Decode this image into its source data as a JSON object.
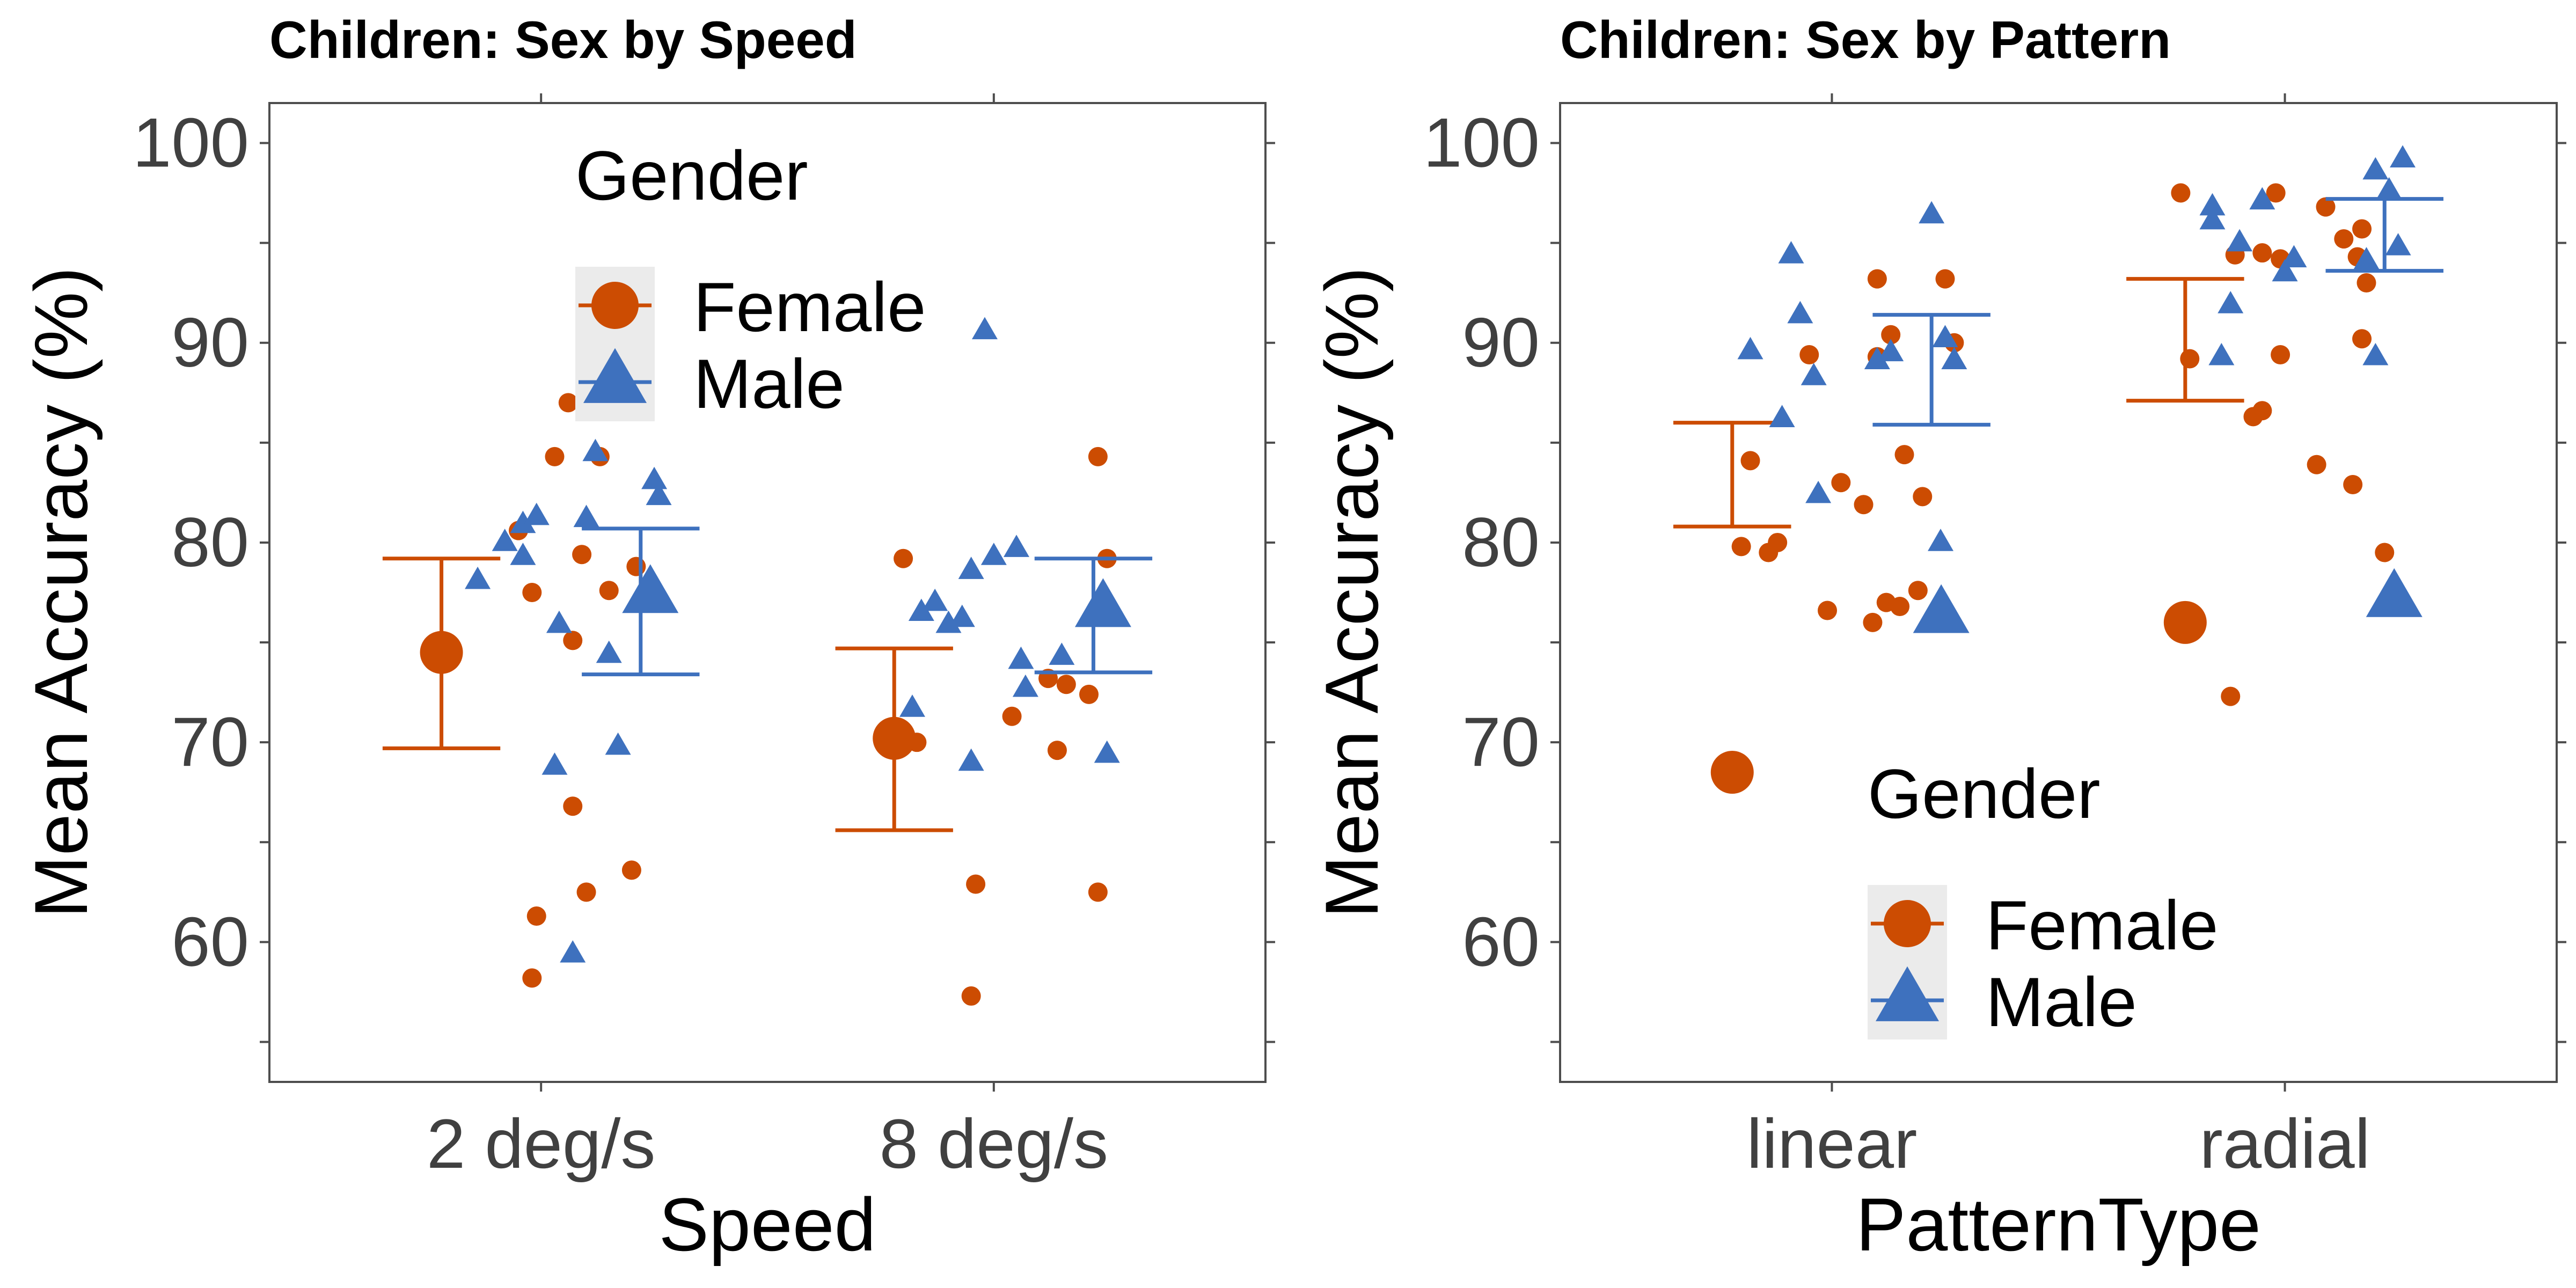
{
  "colors": {
    "female": "#CC4C02",
    "male": "#3E71BE",
    "axis": "#4D4D4D",
    "text": "#000000",
    "tick_text": "#404040",
    "legend_key_bg": "#EBEBEB"
  },
  "legend": {
    "title": "Gender",
    "female_label": "Female",
    "male_label": "Male"
  },
  "chart_data": [
    {
      "type": "scatter",
      "title": "Children: Sex by Speed",
      "xlabel": "Speed",
      "ylabel": "Mean Accuracy (%)",
      "categories": [
        "2 deg/s",
        "8 deg/s"
      ],
      "ylim": [
        53,
        102
      ],
      "yticks": [
        60,
        70,
        80,
        90,
        100
      ],
      "grid": false,
      "legend_position": "top-center",
      "series": [
        {
          "name": "Female",
          "marker": "circle",
          "means": [
            74.5,
            70.2
          ],
          "error_low": [
            69.7,
            65.6
          ],
          "error_high": [
            79.2,
            74.7
          ],
          "points": [
            {
              "x": 0.95,
              "y": 80.6
            },
            {
              "x": 1.06,
              "y": 87.0
            },
            {
              "x": 1.03,
              "y": 84.3
            },
            {
              "x": 1.13,
              "y": 84.3
            },
            {
              "x": 1.09,
              "y": 79.4
            },
            {
              "x": 1.21,
              "y": 78.8
            },
            {
              "x": 1.15,
              "y": 77.6
            },
            {
              "x": 0.98,
              "y": 77.5
            },
            {
              "x": 1.07,
              "y": 75.1
            },
            {
              "x": 1.07,
              "y": 66.8
            },
            {
              "x": 1.2,
              "y": 63.6
            },
            {
              "x": 1.1,
              "y": 62.5
            },
            {
              "x": 0.99,
              "y": 61.3
            },
            {
              "x": 0.98,
              "y": 58.2
            },
            {
              "x": 1.8,
              "y": 79.2
            },
            {
              "x": 1.83,
              "y": 70.0
            },
            {
              "x": 2.04,
              "y": 71.3
            },
            {
              "x": 2.12,
              "y": 73.2
            },
            {
              "x": 2.16,
              "y": 72.9
            },
            {
              "x": 2.21,
              "y": 72.4
            },
            {
              "x": 2.14,
              "y": 69.6
            },
            {
              "x": 2.23,
              "y": 62.5
            },
            {
              "x": 1.96,
              "y": 62.9
            },
            {
              "x": 1.95,
              "y": 57.3
            },
            {
              "x": 2.25,
              "y": 79.2
            },
            {
              "x": 2.23,
              "y": 84.3
            }
          ]
        },
        {
          "name": "Male",
          "marker": "triangle",
          "means": [
            77.4,
            76.7
          ],
          "error_low": [
            73.4,
            73.5
          ],
          "error_high": [
            80.7,
            79.2
          ],
          "points": [
            {
              "x": 0.86,
              "y": 78.1
            },
            {
              "x": 0.92,
              "y": 80.0
            },
            {
              "x": 0.96,
              "y": 79.3
            },
            {
              "x": 0.96,
              "y": 80.9
            },
            {
              "x": 0.99,
              "y": 81.3
            },
            {
              "x": 1.04,
              "y": 75.9
            },
            {
              "x": 1.1,
              "y": 81.2
            },
            {
              "x": 1.12,
              "y": 84.5
            },
            {
              "x": 1.15,
              "y": 74.4
            },
            {
              "x": 1.25,
              "y": 83.1
            },
            {
              "x": 1.26,
              "y": 82.3
            },
            {
              "x": 1.03,
              "y": 68.8
            },
            {
              "x": 1.17,
              "y": 69.8
            },
            {
              "x": 1.07,
              "y": 59.4
            },
            {
              "x": 1.98,
              "y": 90.6
            },
            {
              "x": 1.84,
              "y": 76.5
            },
            {
              "x": 1.87,
              "y": 77.0
            },
            {
              "x": 1.9,
              "y": 75.9
            },
            {
              "x": 1.93,
              "y": 76.2
            },
            {
              "x": 1.95,
              "y": 78.6
            },
            {
              "x": 2.0,
              "y": 79.3
            },
            {
              "x": 2.05,
              "y": 79.7
            },
            {
              "x": 1.82,
              "y": 71.7
            },
            {
              "x": 1.95,
              "y": 69.0
            },
            {
              "x": 2.06,
              "y": 74.1
            },
            {
              "x": 2.07,
              "y": 72.7
            },
            {
              "x": 2.15,
              "y": 74.3
            },
            {
              "x": 2.25,
              "y": 69.4
            }
          ]
        }
      ]
    },
    {
      "type": "scatter",
      "title": "Children: Sex by Pattern",
      "xlabel": "PatternType",
      "ylabel": "Mean Accuracy (%)",
      "categories": [
        "linear",
        "radial"
      ],
      "ylim": [
        53,
        102
      ],
      "yticks": [
        60,
        70,
        80,
        90,
        100
      ],
      "grid": false,
      "legend_position": "bottom-center",
      "series": [
        {
          "name": "Female",
          "marker": "circle",
          "means": [
            68.5,
            76.0
          ],
          "error_low": [
            80.8,
            87.1
          ],
          "error_high": [
            86.0,
            93.2
          ],
          "points": [
            {
              "x": 0.82,
              "y": 84.1
            },
            {
              "x": 0.8,
              "y": 79.8
            },
            {
              "x": 0.86,
              "y": 79.5
            },
            {
              "x": 0.88,
              "y": 80.0
            },
            {
              "x": 0.95,
              "y": 89.4
            },
            {
              "x": 0.99,
              "y": 76.6
            },
            {
              "x": 1.02,
              "y": 83.0
            },
            {
              "x": 1.07,
              "y": 81.9
            },
            {
              "x": 1.1,
              "y": 89.3
            },
            {
              "x": 1.13,
              "y": 90.4
            },
            {
              "x": 1.1,
              "y": 93.2
            },
            {
              "x": 1.09,
              "y": 76.0
            },
            {
              "x": 1.12,
              "y": 77.0
            },
            {
              "x": 1.15,
              "y": 76.8
            },
            {
              "x": 1.19,
              "y": 77.6
            },
            {
              "x": 1.2,
              "y": 82.3
            },
            {
              "x": 1.16,
              "y": 84.4
            },
            {
              "x": 1.25,
              "y": 93.2
            },
            {
              "x": 1.27,
              "y": 90.0
            },
            {
              "x": 1.77,
              "y": 97.5
            },
            {
              "x": 1.79,
              "y": 89.2
            },
            {
              "x": 1.89,
              "y": 94.4
            },
            {
              "x": 1.95,
              "y": 94.5
            },
            {
              "x": 1.99,
              "y": 94.2
            },
            {
              "x": 1.98,
              "y": 97.5
            },
            {
              "x": 2.09,
              "y": 96.8
            },
            {
              "x": 2.13,
              "y": 95.2
            },
            {
              "x": 2.17,
              "y": 95.7
            },
            {
              "x": 2.16,
              "y": 94.3
            },
            {
              "x": 1.99,
              "y": 89.4
            },
            {
              "x": 1.93,
              "y": 86.3
            },
            {
              "x": 1.95,
              "y": 86.6
            },
            {
              "x": 2.07,
              "y": 83.9
            },
            {
              "x": 2.15,
              "y": 82.9
            },
            {
              "x": 2.17,
              "y": 90.2
            },
            {
              "x": 2.18,
              "y": 93.0
            },
            {
              "x": 2.22,
              "y": 79.5
            },
            {
              "x": 1.88,
              "y": 72.3
            }
          ]
        },
        {
          "name": "Male",
          "marker": "triangle",
          "means": [
            76.4,
            77.2
          ],
          "error_low": [
            85.9,
            93.6
          ],
          "error_high": [
            91.4,
            97.2
          ],
          "points": [
            {
              "x": 0.91,
              "y": 94.4
            },
            {
              "x": 0.82,
              "y": 89.6
            },
            {
              "x": 0.89,
              "y": 86.2
            },
            {
              "x": 0.93,
              "y": 91.4
            },
            {
              "x": 0.96,
              "y": 88.3
            },
            {
              "x": 0.97,
              "y": 82.4
            },
            {
              "x": 1.1,
              "y": 89.1
            },
            {
              "x": 1.13,
              "y": 89.5
            },
            {
              "x": 1.22,
              "y": 96.4
            },
            {
              "x": 1.25,
              "y": 90.2
            },
            {
              "x": 1.27,
              "y": 89.1
            },
            {
              "x": 1.24,
              "y": 80.0
            },
            {
              "x": 1.84,
              "y": 96.8
            },
            {
              "x": 1.84,
              "y": 96.1
            },
            {
              "x": 1.88,
              "y": 91.9
            },
            {
              "x": 1.9,
              "y": 95.0
            },
            {
              "x": 1.95,
              "y": 97.1
            },
            {
              "x": 2.0,
              "y": 93.5
            },
            {
              "x": 1.86,
              "y": 89.3
            },
            {
              "x": 2.02,
              "y": 94.2
            },
            {
              "x": 2.2,
              "y": 98.6
            },
            {
              "x": 2.26,
              "y": 99.2
            },
            {
              "x": 2.23,
              "y": 97.6
            },
            {
              "x": 2.25,
              "y": 94.8
            },
            {
              "x": 2.18,
              "y": 94.1
            },
            {
              "x": 2.2,
              "y": 89.3
            }
          ]
        }
      ]
    }
  ]
}
